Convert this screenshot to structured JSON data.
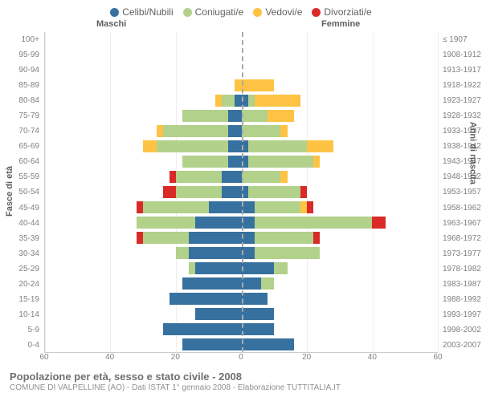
{
  "chart": {
    "type": "population-pyramid",
    "title": "Popolazione per età, sesso e stato civile - 2008",
    "subtitle": "COMUNE DI VALPELLINE (AO) - Dati ISTAT 1° gennaio 2008 - Elaborazione TUTTITALIA.IT",
    "legend": [
      {
        "label": "Celibi/Nubili",
        "color": "#37719f"
      },
      {
        "label": "Coniugati/e",
        "color": "#b2d18b"
      },
      {
        "label": "Vedovi/e",
        "color": "#ffc343"
      },
      {
        "label": "Divorziati/e",
        "color": "#d92a27"
      }
    ],
    "gender_labels": {
      "m": "Maschi",
      "f": "Femmine"
    },
    "y_left_title": "Fasce di età",
    "y_right_title": "Anni di nascita",
    "x_ticks": [
      60,
      40,
      20,
      0,
      20,
      40,
      60
    ],
    "x_max": 60,
    "age_labels": [
      "100+",
      "95-99",
      "90-94",
      "85-89",
      "80-84",
      "75-79",
      "70-74",
      "65-69",
      "60-64",
      "55-59",
      "50-54",
      "45-49",
      "40-44",
      "35-39",
      "30-34",
      "25-29",
      "20-24",
      "15-19",
      "10-14",
      "5-9",
      "0-4"
    ],
    "birth_labels": [
      "≤ 1907",
      "1908-1912",
      "1913-1917",
      "1918-1922",
      "1923-1927",
      "1928-1932",
      "1933-1937",
      "1938-1942",
      "1943-1947",
      "1948-1952",
      "1953-1957",
      "1958-1962",
      "1963-1967",
      "1968-1972",
      "1973-1977",
      "1978-1982",
      "1983-1987",
      "1988-1992",
      "1993-1997",
      "1998-2002",
      "2003-2007"
    ],
    "data": [
      {
        "m": {
          "c": 0,
          "g": 0,
          "v": 0,
          "d": 0
        },
        "f": {
          "c": 0,
          "g": 0,
          "v": 0,
          "d": 0
        }
      },
      {
        "m": {
          "c": 0,
          "g": 0,
          "v": 0,
          "d": 0
        },
        "f": {
          "c": 0,
          "g": 0,
          "v": 0,
          "d": 0
        }
      },
      {
        "m": {
          "c": 0,
          "g": 0,
          "v": 0,
          "d": 0
        },
        "f": {
          "c": 0,
          "g": 0,
          "v": 0,
          "d": 0
        }
      },
      {
        "m": {
          "c": 0,
          "g": 0,
          "v": 2,
          "d": 0
        },
        "f": {
          "c": 0,
          "g": 0,
          "v": 10,
          "d": 0
        }
      },
      {
        "m": {
          "c": 2,
          "g": 4,
          "v": 2,
          "d": 0
        },
        "f": {
          "c": 2,
          "g": 2,
          "v": 14,
          "d": 0
        }
      },
      {
        "m": {
          "c": 4,
          "g": 14,
          "v": 0,
          "d": 0
        },
        "f": {
          "c": 0,
          "g": 8,
          "v": 8,
          "d": 0
        }
      },
      {
        "m": {
          "c": 4,
          "g": 20,
          "v": 2,
          "d": 0
        },
        "f": {
          "c": 0,
          "g": 12,
          "v": 2,
          "d": 0
        }
      },
      {
        "m": {
          "c": 4,
          "g": 22,
          "v": 4,
          "d": 0
        },
        "f": {
          "c": 2,
          "g": 18,
          "v": 8,
          "d": 0
        }
      },
      {
        "m": {
          "c": 4,
          "g": 14,
          "v": 0,
          "d": 0
        },
        "f": {
          "c": 2,
          "g": 20,
          "v": 2,
          "d": 0
        }
      },
      {
        "m": {
          "c": 6,
          "g": 14,
          "v": 0,
          "d": 2
        },
        "f": {
          "c": 0,
          "g": 12,
          "v": 2,
          "d": 0
        }
      },
      {
        "m": {
          "c": 6,
          "g": 14,
          "v": 0,
          "d": 4
        },
        "f": {
          "c": 2,
          "g": 16,
          "v": 0,
          "d": 2
        }
      },
      {
        "m": {
          "c": 10,
          "g": 20,
          "v": 0,
          "d": 2
        },
        "f": {
          "c": 4,
          "g": 14,
          "v": 2,
          "d": 2
        }
      },
      {
        "m": {
          "c": 14,
          "g": 18,
          "v": 0,
          "d": 0
        },
        "f": {
          "c": 4,
          "g": 36,
          "v": 0,
          "d": 4
        }
      },
      {
        "m": {
          "c": 16,
          "g": 14,
          "v": 0,
          "d": 2
        },
        "f": {
          "c": 4,
          "g": 18,
          "v": 0,
          "d": 2
        }
      },
      {
        "m": {
          "c": 16,
          "g": 4,
          "v": 0,
          "d": 0
        },
        "f": {
          "c": 4,
          "g": 20,
          "v": 0,
          "d": 0
        }
      },
      {
        "m": {
          "c": 14,
          "g": 2,
          "v": 0,
          "d": 0
        },
        "f": {
          "c": 10,
          "g": 4,
          "v": 0,
          "d": 0
        }
      },
      {
        "m": {
          "c": 18,
          "g": 0,
          "v": 0,
          "d": 0
        },
        "f": {
          "c": 6,
          "g": 4,
          "v": 0,
          "d": 0
        }
      },
      {
        "m": {
          "c": 22,
          "g": 0,
          "v": 0,
          "d": 0
        },
        "f": {
          "c": 8,
          "g": 0,
          "v": 0,
          "d": 0
        }
      },
      {
        "m": {
          "c": 14,
          "g": 0,
          "v": 0,
          "d": 0
        },
        "f": {
          "c": 10,
          "g": 0,
          "v": 0,
          "d": 0
        }
      },
      {
        "m": {
          "c": 24,
          "g": 0,
          "v": 0,
          "d": 0
        },
        "f": {
          "c": 10,
          "g": 0,
          "v": 0,
          "d": 0
        }
      },
      {
        "m": {
          "c": 18,
          "g": 0,
          "v": 0,
          "d": 0
        },
        "f": {
          "c": 16,
          "g": 0,
          "v": 0,
          "d": 0
        }
      }
    ],
    "colors": {
      "c": "#37719f",
      "g": "#b2d18b",
      "v": "#ffc343",
      "d": "#d92a27",
      "grid": "#eeeeee",
      "center": "#aaaaaa",
      "bg": "#ffffff"
    }
  }
}
